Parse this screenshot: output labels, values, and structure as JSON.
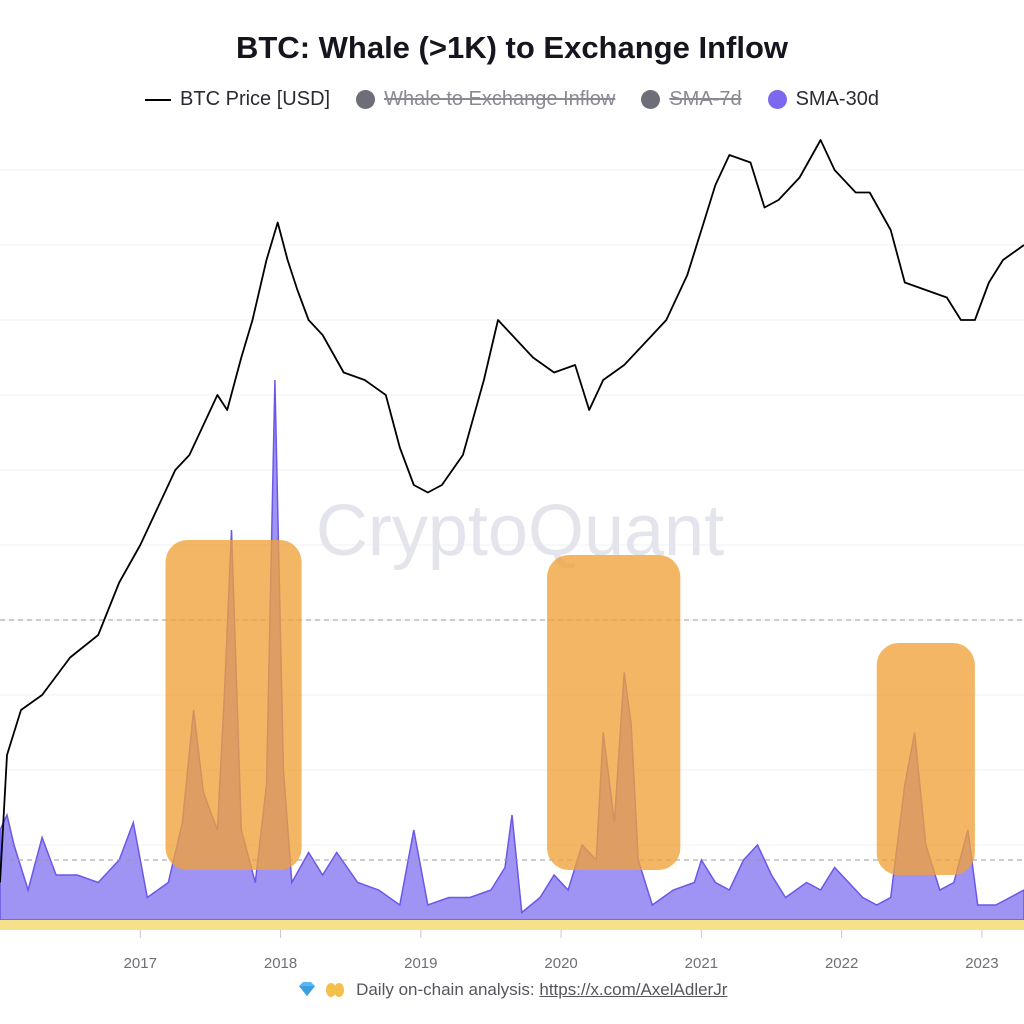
{
  "chart_data": {
    "type": "area",
    "title": "BTC: Whale (>1K) to Exchange Inflow",
    "legend": [
      {
        "key": "btc_price",
        "label": "BTC Price [USD]",
        "marker": "line",
        "color": "#000000",
        "enabled": true
      },
      {
        "key": "inflow",
        "label": "Whale to Exchange Inflow",
        "marker": "dot",
        "color": "#6e6e78",
        "enabled": false
      },
      {
        "key": "sma7",
        "label": "SMA-7d",
        "marker": "dot",
        "color": "#6e6e78",
        "enabled": false
      },
      {
        "key": "sma30",
        "label": "SMA-30d",
        "marker": "dot",
        "color": "#7b68ee",
        "enabled": true
      }
    ],
    "legend_position": "top-center",
    "x_ticks": [
      "2017",
      "2018",
      "2019",
      "2020",
      "2021",
      "2022",
      "2023"
    ],
    "xlim": [
      2016.0,
      2023.3
    ],
    "series": [
      {
        "key": "btc_price",
        "points": [
          [
            2016.0,
            0.05
          ],
          [
            2016.05,
            0.22
          ],
          [
            2016.15,
            0.28
          ],
          [
            2016.3,
            0.3
          ],
          [
            2016.5,
            0.35
          ],
          [
            2016.7,
            0.38
          ],
          [
            2016.85,
            0.45
          ],
          [
            2017.0,
            0.5
          ],
          [
            2017.15,
            0.56
          ],
          [
            2017.25,
            0.6
          ],
          [
            2017.35,
            0.62
          ],
          [
            2017.45,
            0.66
          ],
          [
            2017.55,
            0.7
          ],
          [
            2017.62,
            0.68
          ],
          [
            2017.72,
            0.75
          ],
          [
            2017.8,
            0.8
          ],
          [
            2017.9,
            0.88
          ],
          [
            2017.98,
            0.93
          ],
          [
            2018.05,
            0.88
          ],
          [
            2018.12,
            0.84
          ],
          [
            2018.2,
            0.8
          ],
          [
            2018.3,
            0.78
          ],
          [
            2018.45,
            0.73
          ],
          [
            2018.6,
            0.72
          ],
          [
            2018.75,
            0.7
          ],
          [
            2018.85,
            0.63
          ],
          [
            2018.95,
            0.58
          ],
          [
            2019.05,
            0.57
          ],
          [
            2019.15,
            0.58
          ],
          [
            2019.3,
            0.62
          ],
          [
            2019.45,
            0.72
          ],
          [
            2019.55,
            0.8
          ],
          [
            2019.65,
            0.78
          ],
          [
            2019.8,
            0.75
          ],
          [
            2019.95,
            0.73
          ],
          [
            2020.1,
            0.74
          ],
          [
            2020.2,
            0.68
          ],
          [
            2020.3,
            0.72
          ],
          [
            2020.45,
            0.74
          ],
          [
            2020.6,
            0.77
          ],
          [
            2020.75,
            0.8
          ],
          [
            2020.9,
            0.86
          ],
          [
            2021.0,
            0.92
          ],
          [
            2021.1,
            0.98
          ],
          [
            2021.2,
            1.02
          ],
          [
            2021.35,
            1.01
          ],
          [
            2021.45,
            0.95
          ],
          [
            2021.55,
            0.96
          ],
          [
            2021.7,
            0.99
          ],
          [
            2021.85,
            1.04
          ],
          [
            2021.95,
            1.0
          ],
          [
            2022.1,
            0.97
          ],
          [
            2022.2,
            0.97
          ],
          [
            2022.35,
            0.92
          ],
          [
            2022.45,
            0.85
          ],
          [
            2022.6,
            0.84
          ],
          [
            2022.75,
            0.83
          ],
          [
            2022.85,
            0.8
          ],
          [
            2022.95,
            0.8
          ],
          [
            2023.05,
            0.85
          ],
          [
            2023.15,
            0.88
          ],
          [
            2023.3,
            0.9
          ]
        ]
      },
      {
        "key": "sma30",
        "points": [
          [
            2016.0,
            0.12
          ],
          [
            2016.05,
            0.14
          ],
          [
            2016.1,
            0.1
          ],
          [
            2016.2,
            0.04
          ],
          [
            2016.3,
            0.11
          ],
          [
            2016.4,
            0.06
          ],
          [
            2016.55,
            0.06
          ],
          [
            2016.7,
            0.05
          ],
          [
            2016.85,
            0.08
          ],
          [
            2016.95,
            0.13
          ],
          [
            2017.05,
            0.03
          ],
          [
            2017.2,
            0.05
          ],
          [
            2017.3,
            0.13
          ],
          [
            2017.38,
            0.28
          ],
          [
            2017.45,
            0.17
          ],
          [
            2017.55,
            0.12
          ],
          [
            2017.6,
            0.3
          ],
          [
            2017.65,
            0.52
          ],
          [
            2017.72,
            0.12
          ],
          [
            2017.82,
            0.05
          ],
          [
            2017.9,
            0.18
          ],
          [
            2017.96,
            0.72
          ],
          [
            2018.02,
            0.2
          ],
          [
            2018.08,
            0.05
          ],
          [
            2018.2,
            0.09
          ],
          [
            2018.3,
            0.06
          ],
          [
            2018.4,
            0.09
          ],
          [
            2018.55,
            0.05
          ],
          [
            2018.7,
            0.04
          ],
          [
            2018.85,
            0.02
          ],
          [
            2018.95,
            0.12
          ],
          [
            2019.05,
            0.02
          ],
          [
            2019.2,
            0.03
          ],
          [
            2019.35,
            0.03
          ],
          [
            2019.5,
            0.04
          ],
          [
            2019.6,
            0.07
          ],
          [
            2019.65,
            0.14
          ],
          [
            2019.72,
            0.01
          ],
          [
            2019.85,
            0.03
          ],
          [
            2019.95,
            0.06
          ],
          [
            2020.05,
            0.04
          ],
          [
            2020.15,
            0.1
          ],
          [
            2020.25,
            0.08
          ],
          [
            2020.3,
            0.25
          ],
          [
            2020.38,
            0.13
          ],
          [
            2020.45,
            0.33
          ],
          [
            2020.5,
            0.26
          ],
          [
            2020.55,
            0.08
          ],
          [
            2020.65,
            0.02
          ],
          [
            2020.8,
            0.04
          ],
          [
            2020.95,
            0.05
          ],
          [
            2021.0,
            0.08
          ],
          [
            2021.1,
            0.05
          ],
          [
            2021.2,
            0.04
          ],
          [
            2021.3,
            0.08
          ],
          [
            2021.4,
            0.1
          ],
          [
            2021.5,
            0.06
          ],
          [
            2021.6,
            0.03
          ],
          [
            2021.75,
            0.05
          ],
          [
            2021.85,
            0.04
          ],
          [
            2021.95,
            0.07
          ],
          [
            2022.05,
            0.05
          ],
          [
            2022.15,
            0.03
          ],
          [
            2022.25,
            0.02
          ],
          [
            2022.35,
            0.03
          ],
          [
            2022.45,
            0.18
          ],
          [
            2022.52,
            0.25
          ],
          [
            2022.6,
            0.1
          ],
          [
            2022.7,
            0.04
          ],
          [
            2022.8,
            0.05
          ],
          [
            2022.9,
            0.12
          ],
          [
            2022.97,
            0.02
          ],
          [
            2023.1,
            0.02
          ],
          [
            2023.2,
            0.03
          ],
          [
            2023.3,
            0.04
          ]
        ]
      }
    ],
    "highlight_regions": [
      {
        "x": [
          2017.18,
          2018.15
        ]
      },
      {
        "x": [
          2019.9,
          2020.85
        ]
      },
      {
        "x": [
          2022.25,
          2022.95
        ]
      }
    ],
    "reference_lines": [
      0.4,
      0.08
    ],
    "grid": true,
    "watermark": "CryptoQuant"
  },
  "footer": {
    "text": "Daily on-chain analysis: ",
    "link": "https://x.com/AxelAdlerJr"
  },
  "colors": {
    "price_line": "#000000",
    "sma_fill": "#8e80f2",
    "sma_stroke": "#6b58e8",
    "highlight": "#f0a23a",
    "axis_band": "#f7e08a"
  }
}
